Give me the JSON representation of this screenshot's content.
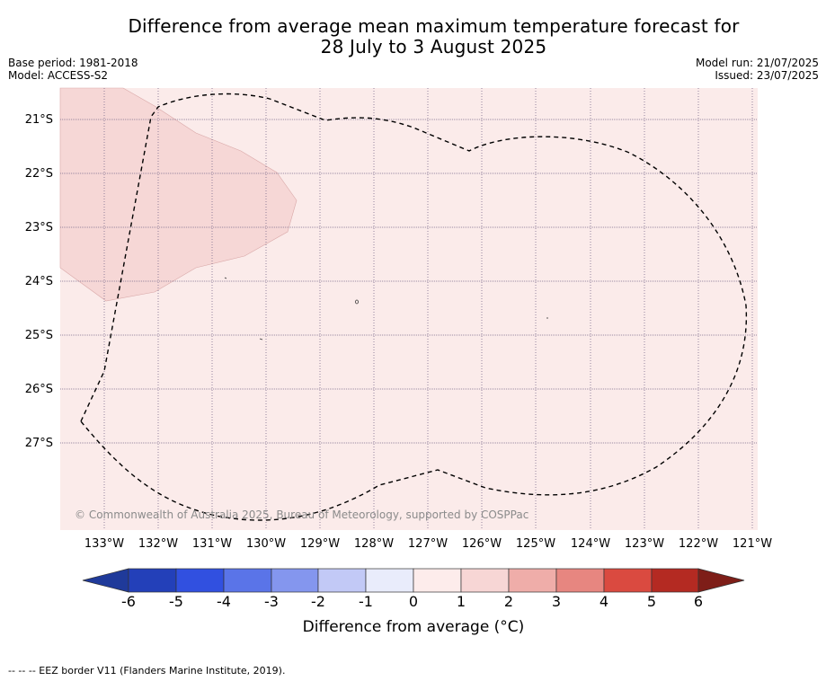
{
  "title_line1": "Difference from average mean maximum temperature forecast for",
  "title_line2": "28 July to 3 August 2025",
  "meta": {
    "base_period": "Base period: 1981-2018",
    "model": "Model: ACCESS-S2",
    "model_run": "Model run: 21/07/2025",
    "issued": "Issued: 23/07/2025"
  },
  "map": {
    "background_color": "#fbebea",
    "anomaly_patch_color": "#f6d7d6",
    "latitude_labels": [
      "21°S",
      "22°S",
      "23°S",
      "24°S",
      "25°S",
      "26°S",
      "27°S"
    ],
    "longitude_labels": [
      "133°W",
      "132°W",
      "131°W",
      "130°W",
      "129°W",
      "128°W",
      "127°W",
      "126°W",
      "125°W",
      "124°W",
      "123°W",
      "122°W",
      "121°W"
    ],
    "copyright": "© Commonwealth of Australia 2025, Bureau of Meteorology, supported by COSPPac"
  },
  "colorbar": {
    "title": "Difference from average (°C)",
    "ticks": [
      "-6",
      "-5",
      "-4",
      "-3",
      "-2",
      "-1",
      "0",
      "1",
      "2",
      "3",
      "4",
      "5",
      "6"
    ],
    "colors": [
      "#1f3a9a",
      "#2340b9",
      "#3150e0",
      "#5a74e8",
      "#8496ee",
      "#c2c9f6",
      "#e9ecfb",
      "#fdeceb",
      "#f7d6d5",
      "#efada9",
      "#e78680",
      "#da4a40",
      "#b42a22",
      "#7e1e18"
    ]
  },
  "footer": "-- -- -- EEZ border V11 (Flanders Marine Institute, 2019)."
}
